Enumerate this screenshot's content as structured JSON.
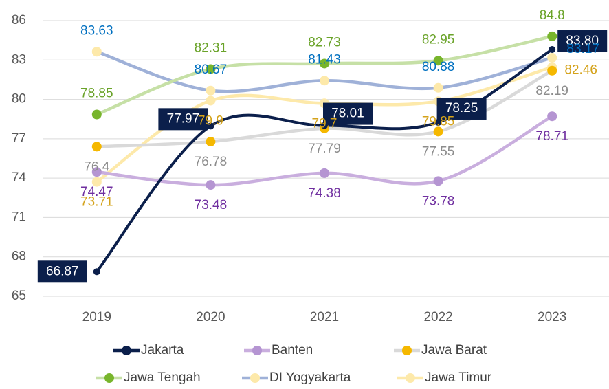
{
  "chart_data": {
    "type": "line",
    "categories": [
      "2019",
      "2020",
      "2021",
      "2022",
      "2023"
    ],
    "ylim": [
      65,
      86
    ],
    "yticks": [
      65,
      68,
      71,
      74,
      77,
      80,
      83,
      86
    ],
    "grid": true,
    "smooth": true,
    "series": [
      {
        "name": "Jakarta",
        "color": "#0b1f4b",
        "marker_color": "#0b1f4b",
        "label_color": "#ffffff",
        "label_box": "#0b1f4b",
        "values": [
          66.87,
          77.97,
          78.01,
          78.25,
          83.8
        ],
        "value_labels": [
          "66.87",
          "77.97",
          "78.01",
          "78.25",
          "83.80"
        ]
      },
      {
        "name": "Banten",
        "color": "#c9aede",
        "marker_color": "#b595d2",
        "label_color": "#7030a0",
        "values": [
          74.47,
          73.48,
          74.38,
          73.78,
          78.71
        ]
      },
      {
        "name": "Jawa Barat",
        "color": "#d9d9d9",
        "marker_color": "#f5b800",
        "label_color": "#8c8c8c",
        "values": [
          76.4,
          76.78,
          77.79,
          77.55,
          82.19
        ]
      },
      {
        "name": "Jawa Tengah",
        "color": "#c6e0a6",
        "marker_color": "#78b52c",
        "label_color": "#6aa329",
        "values": [
          78.85,
          82.31,
          82.73,
          82.95,
          84.8
        ]
      },
      {
        "name": "DI Yogyakarta",
        "color": "#9fb1d8",
        "marker_color": "#fde9aa",
        "label_color": "#0070c0",
        "values": [
          83.63,
          80.67,
          81.43,
          80.88,
          83.17
        ]
      },
      {
        "name": "Jawa Timur",
        "color": "#fde9aa",
        "marker_color": "#fde9aa",
        "label_color": "#d4a21a",
        "values": [
          73.71,
          79.9,
          79.7,
          79.85,
          82.46
        ]
      }
    ]
  }
}
